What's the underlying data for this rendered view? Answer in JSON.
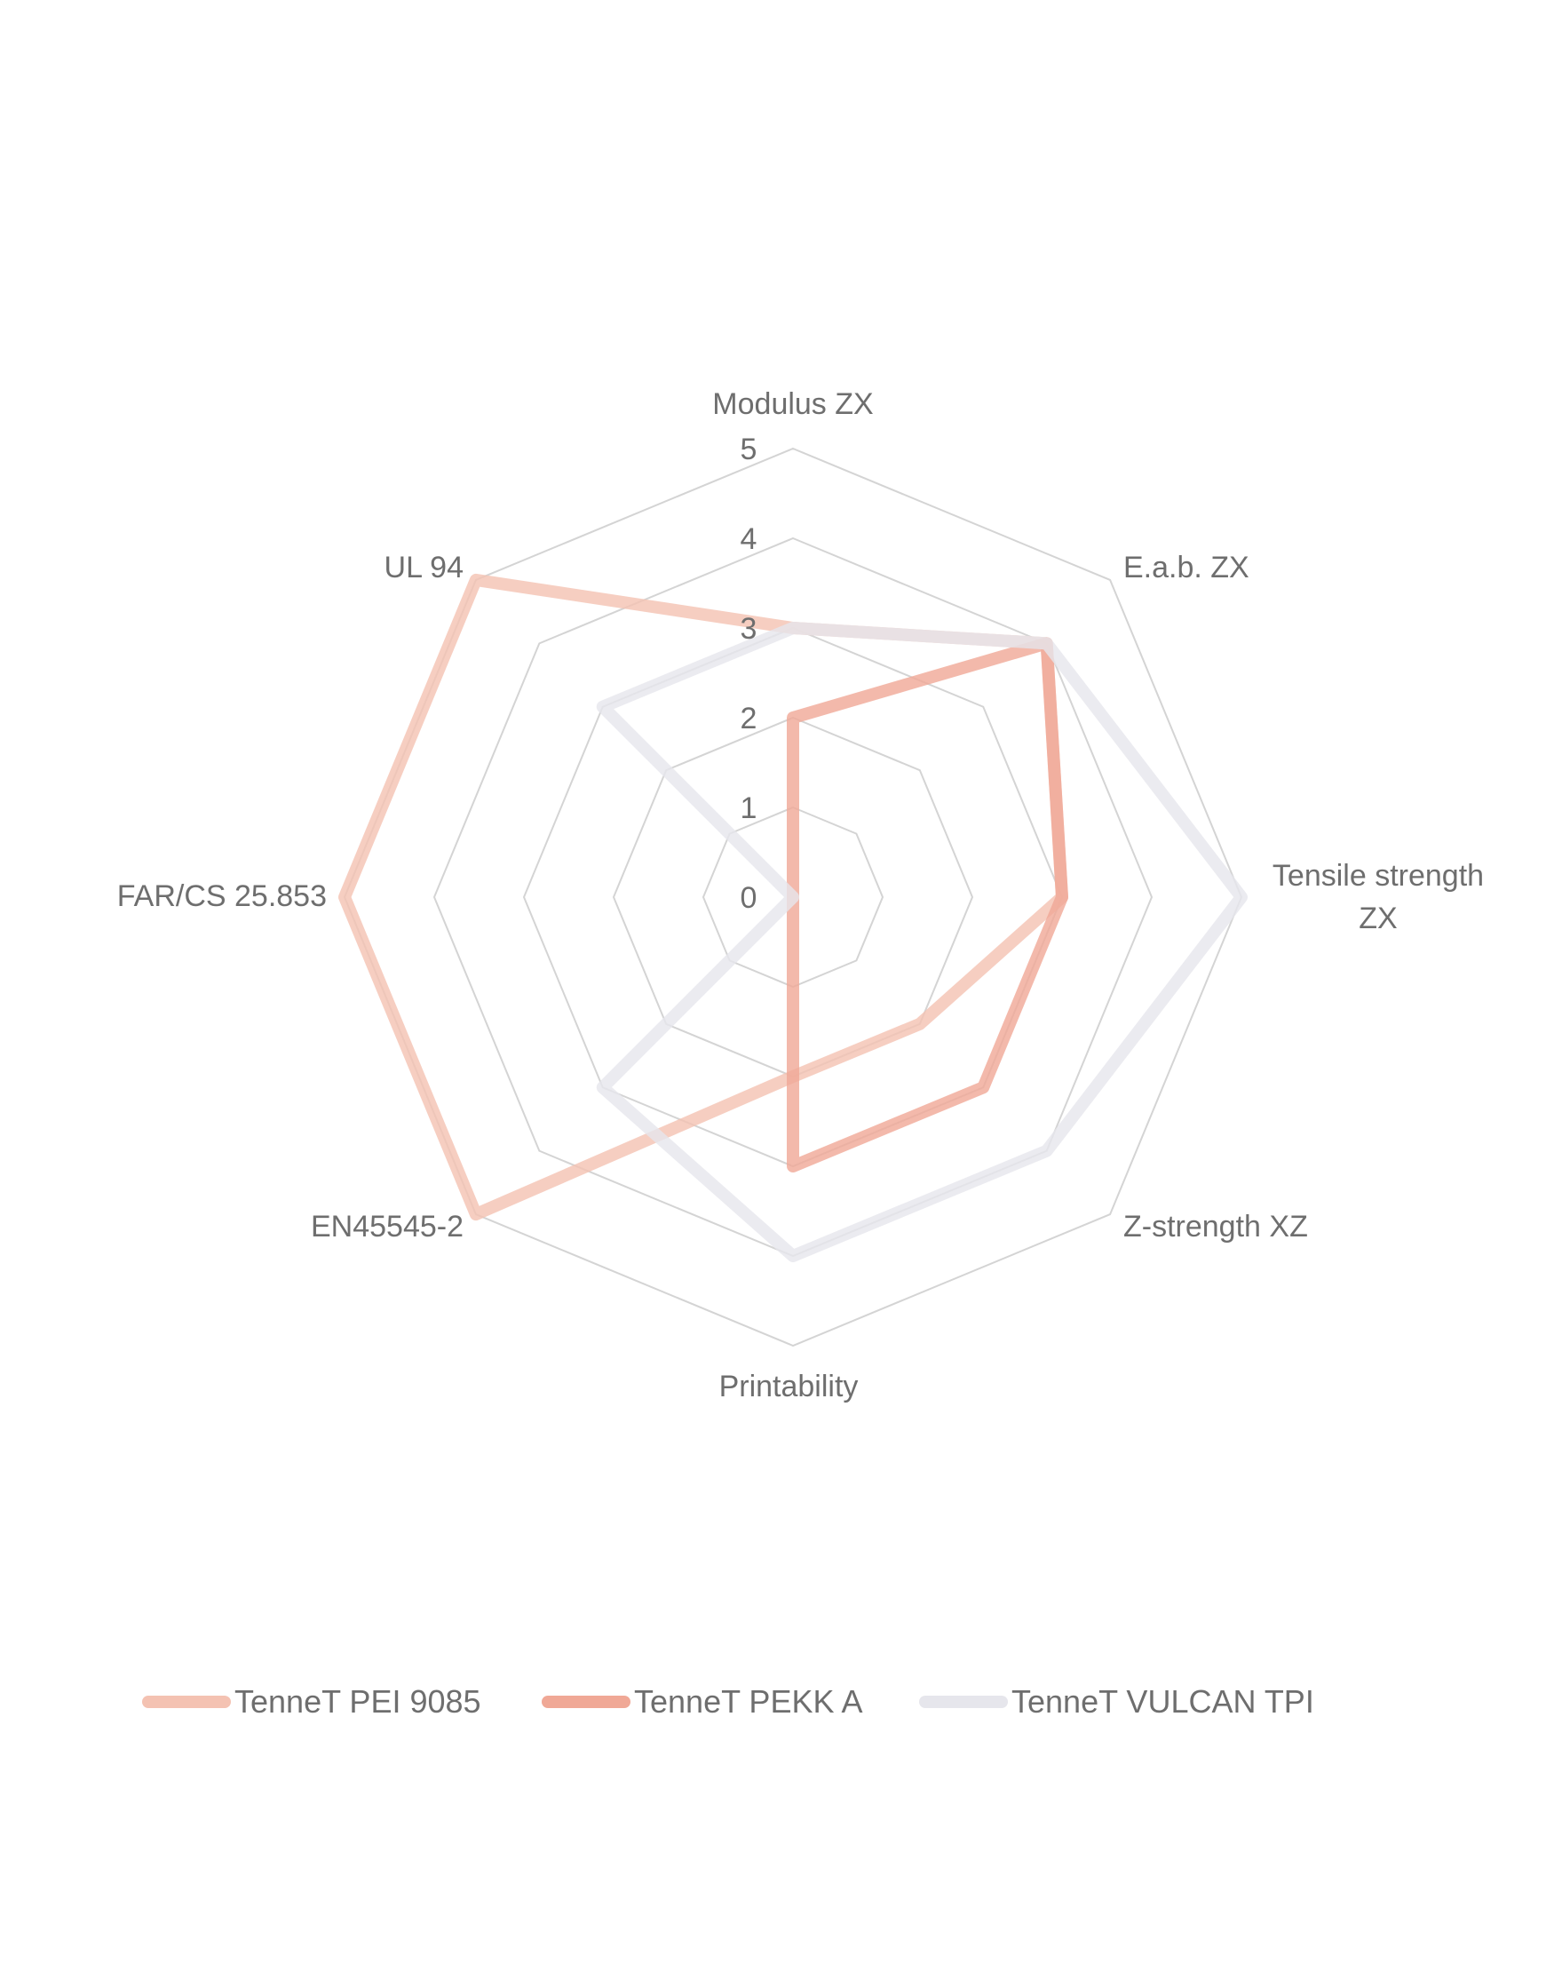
{
  "chart_data": {
    "type": "radar",
    "categories": [
      "Modulus ZX",
      "E.a.b.  ZX",
      "Tensile strength ZX",
      "Z-strength XZ",
      "Printability",
      "EN45545-2",
      "FAR/CS 25.853",
      "UL 94"
    ],
    "category_label_lines": [
      [
        "Modulus ZX"
      ],
      [
        "E.a.b.  ZX"
      ],
      [
        "Tensile strength",
        "ZX"
      ],
      [
        "Z-strength XZ"
      ],
      [
        "Printability"
      ],
      [
        "EN45545-2"
      ],
      [
        "FAR/CS 25.853"
      ],
      [
        "UL 94"
      ]
    ],
    "rlim": [
      0,
      5
    ],
    "ticks": [
      "0",
      "1",
      "2",
      "3",
      "4",
      "5"
    ],
    "grid": true,
    "legend_position": "bottom",
    "series": [
      {
        "name": "TenneT PEI 9085",
        "color": "#f4c2b2",
        "values": [
          3,
          4,
          3,
          2,
          2,
          5,
          5,
          5
        ]
      },
      {
        "name": "TenneT PEKK A",
        "color": "#f0a896",
        "values": [
          2,
          4,
          3,
          3,
          3,
          0,
          0,
          0
        ]
      },
      {
        "name": "TenneT VULCAN TPI",
        "color": "#e6e6ec",
        "values": [
          3,
          4,
          5,
          4,
          4,
          3,
          0,
          3
        ]
      }
    ]
  }
}
